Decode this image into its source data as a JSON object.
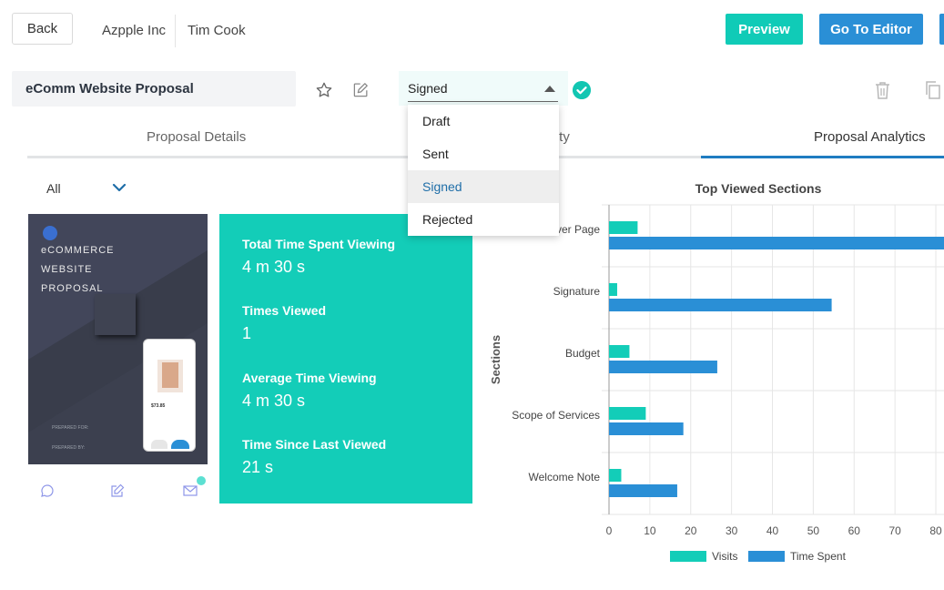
{
  "header": {
    "back_label": "Back",
    "company": "Azpple Inc",
    "contact": "Tim Cook",
    "preview_label": "Preview",
    "editor_label": "Go To Editor"
  },
  "proposal": {
    "title": "eComm Website Proposal",
    "status": "Signed"
  },
  "status_dropdown": {
    "options": [
      "Draft",
      "Sent",
      "Signed",
      "Rejected"
    ],
    "selected": "Signed"
  },
  "tabs": [
    {
      "label": "Proposal Details",
      "active": false
    },
    {
      "label": "ivity",
      "active": false
    },
    {
      "label": "Proposal Analytics",
      "active": true
    }
  ],
  "filter": {
    "value": "All"
  },
  "thumbnail": {
    "lines": [
      "eCOMMERCE",
      "WEBSITE",
      "PROPOSAL"
    ],
    "prepared_for": "PREPARED FOR:",
    "prepared_by": "PREPARED BY:",
    "price": "$73.85"
  },
  "stats": [
    {
      "label": "Total Time Spent Viewing",
      "value": "4 m 30 s"
    },
    {
      "label": "Times Viewed",
      "value": "1"
    },
    {
      "label": "Average Time Viewing",
      "value": "4 m 30 s"
    },
    {
      "label": "Time Since Last Viewed",
      "value": "21 s"
    }
  ],
  "colors": {
    "teal": "#13cdb8",
    "blue": "#2a8fd6",
    "tab_active": "#1f7cc1",
    "thumb_bg": "#3d4150"
  },
  "icons": [
    "star-icon",
    "edit-icon",
    "check-icon",
    "trash-icon",
    "copy-icon",
    "chevron-down-icon",
    "chat-icon",
    "note-icon",
    "mail-icon"
  ],
  "chart_data": {
    "type": "bar",
    "orientation": "horizontal",
    "title": "Top Viewed Sections",
    "ylabel": "Sections",
    "xlabel": "",
    "categories": [
      "Cover Page",
      "Signature",
      "Budget",
      "Scope of Services",
      "Welcome Note"
    ],
    "series": [
      {
        "name": "Visits",
        "color": "#13cdb8",
        "values": [
          7,
          2,
          5,
          9,
          3
        ]
      },
      {
        "name": "Time Spent",
        "color": "#2a8fd6",
        "values": [
          82,
          54.5,
          26.5,
          18.2,
          16.7
        ]
      }
    ],
    "xlim": [
      0,
      82
    ],
    "xticks": [
      0,
      10,
      20,
      30,
      40,
      50,
      60,
      70,
      80
    ],
    "grid": true,
    "legend": "bottom"
  }
}
